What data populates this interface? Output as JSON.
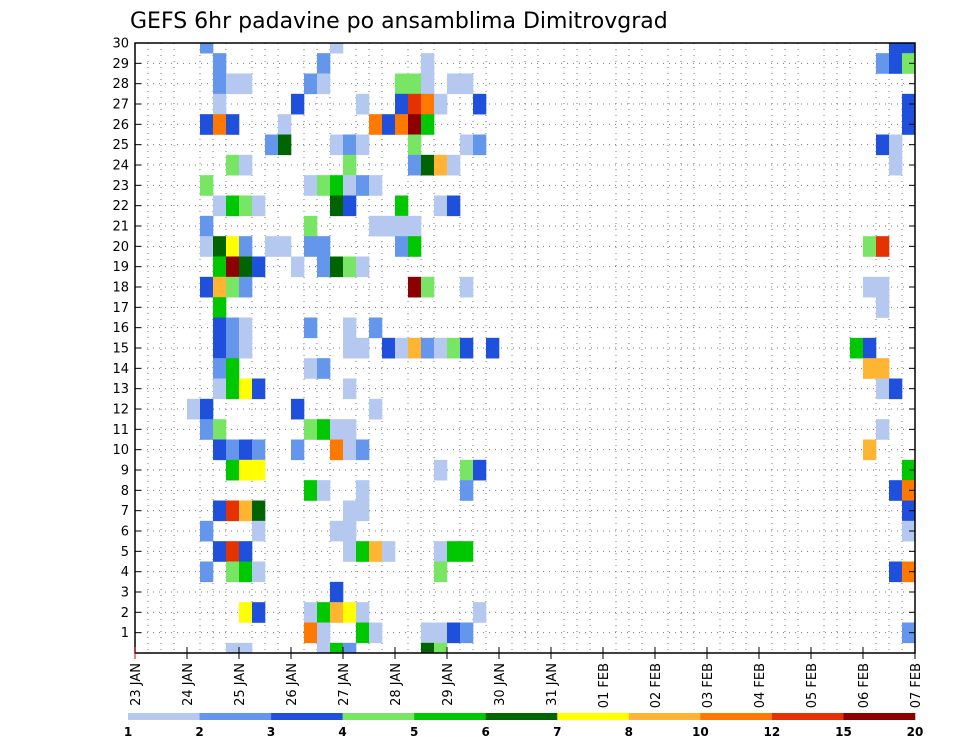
{
  "chart_data": {
    "type": "heatmap",
    "title": "GEFS 6hr padavine po ansamblima Dimitrovgrad",
    "xlabel": "",
    "ylabel": "",
    "x_tick_labels": [
      "23 JAN",
      "24 JAN",
      "25 JAN",
      "26 JAN",
      "27 JAN",
      "28 JAN",
      "29 JAN",
      "30 JAN",
      "31 JAN",
      "01 FEB",
      "02 FEB",
      "03 FEB",
      "04 FEB",
      "05 FEB",
      "06 FEB",
      "07 FEB"
    ],
    "x_range_steps": [
      0,
      60
    ],
    "step_hours": 6,
    "y_tick_labels": [
      "1",
      "2",
      "3",
      "4",
      "5",
      "6",
      "7",
      "8",
      "9",
      "10",
      "11",
      "12",
      "13",
      "14",
      "15",
      "16",
      "17",
      "18",
      "19",
      "20",
      "21",
      "22",
      "23",
      "24",
      "25",
      "26",
      "27",
      "28",
      "29",
      "30"
    ],
    "y_range": [
      0,
      30
    ],
    "grid": true,
    "colorbar": {
      "labels": [
        "1",
        "2",
        "3",
        "4",
        "5",
        "6",
        "7",
        "8",
        "10",
        "12",
        "15",
        "20"
      ],
      "colors": [
        "#b4c8f0",
        "#6496eb",
        "#1e50dc",
        "#78e664",
        "#00c800",
        "#006400",
        "#ffff00",
        "#ffb432",
        "#ff7800",
        "#e63200",
        "#8c0000"
      ]
    },
    "cell_encoding": "each cell = [time step (6 h), member row, colour class 1-11]",
    "cells": [
      [
        6,
        30,
        2
      ],
      [
        16,
        30,
        1
      ],
      [
        59,
        30,
        3
      ],
      [
        60,
        30,
        3
      ],
      [
        7,
        29,
        2
      ],
      [
        15,
        29,
        2
      ],
      [
        23,
        29,
        1
      ],
      [
        58,
        29,
        2
      ],
      [
        59,
        29,
        3
      ],
      [
        60,
        29,
        4
      ],
      [
        7,
        28,
        2
      ],
      [
        8,
        28,
        1
      ],
      [
        9,
        28,
        1
      ],
      [
        14,
        28,
        2
      ],
      [
        15,
        28,
        1
      ],
      [
        21,
        28,
        4
      ],
      [
        22,
        28,
        4
      ],
      [
        23,
        28,
        1
      ],
      [
        25,
        28,
        1
      ],
      [
        26,
        28,
        1
      ],
      [
        7,
        27,
        1
      ],
      [
        13,
        27,
        3
      ],
      [
        18,
        27,
        1
      ],
      [
        21,
        27,
        3
      ],
      [
        22,
        27,
        10
      ],
      [
        23,
        27,
        9
      ],
      [
        24,
        27,
        1
      ],
      [
        27,
        27,
        3
      ],
      [
        60,
        27,
        3
      ],
      [
        6,
        26,
        3
      ],
      [
        7,
        26,
        9
      ],
      [
        8,
        26,
        3
      ],
      [
        12,
        26,
        1
      ],
      [
        19,
        26,
        9
      ],
      [
        20,
        26,
        3
      ],
      [
        21,
        26,
        9
      ],
      [
        22,
        26,
        11
      ],
      [
        23,
        26,
        5
      ],
      [
        60,
        26,
        3
      ],
      [
        11,
        25,
        2
      ],
      [
        12,
        25,
        6
      ],
      [
        16,
        25,
        1
      ],
      [
        17,
        25,
        2
      ],
      [
        18,
        25,
        1
      ],
      [
        22,
        25,
        4
      ],
      [
        26,
        25,
        1
      ],
      [
        27,
        25,
        2
      ],
      [
        58,
        25,
        3
      ],
      [
        59,
        25,
        1
      ],
      [
        8,
        24,
        4
      ],
      [
        9,
        24,
        1
      ],
      [
        17,
        24,
        4
      ],
      [
        22,
        24,
        2
      ],
      [
        23,
        24,
        6
      ],
      [
        24,
        24,
        8
      ],
      [
        25,
        24,
        1
      ],
      [
        59,
        24,
        1
      ],
      [
        6,
        23,
        4
      ],
      [
        14,
        23,
        1
      ],
      [
        15,
        23,
        4
      ],
      [
        16,
        23,
        5
      ],
      [
        17,
        23,
        1
      ],
      [
        18,
        23,
        2
      ],
      [
        19,
        23,
        1
      ],
      [
        7,
        22,
        1
      ],
      [
        8,
        22,
        5
      ],
      [
        9,
        22,
        4
      ],
      [
        10,
        22,
        1
      ],
      [
        16,
        22,
        6
      ],
      [
        17,
        22,
        3
      ],
      [
        21,
        22,
        5
      ],
      [
        24,
        22,
        1
      ],
      [
        25,
        22,
        3
      ],
      [
        6,
        21,
        2
      ],
      [
        14,
        21,
        4
      ],
      [
        19,
        21,
        1
      ],
      [
        20,
        21,
        1
      ],
      [
        21,
        21,
        1
      ],
      [
        22,
        21,
        1
      ],
      [
        6,
        20,
        1
      ],
      [
        7,
        20,
        6
      ],
      [
        8,
        20,
        7
      ],
      [
        9,
        20,
        2
      ],
      [
        11,
        20,
        1
      ],
      [
        12,
        20,
        1
      ],
      [
        14,
        20,
        2
      ],
      [
        15,
        20,
        2
      ],
      [
        21,
        20,
        2
      ],
      [
        22,
        20,
        5
      ],
      [
        57,
        20,
        4
      ],
      [
        58,
        20,
        10
      ],
      [
        7,
        19,
        5
      ],
      [
        8,
        19,
        11
      ],
      [
        9,
        19,
        6
      ],
      [
        10,
        19,
        3
      ],
      [
        13,
        19,
        1
      ],
      [
        15,
        19,
        2
      ],
      [
        16,
        19,
        6
      ],
      [
        17,
        19,
        4
      ],
      [
        18,
        19,
        1
      ],
      [
        6,
        18,
        3
      ],
      [
        7,
        18,
        8
      ],
      [
        8,
        18,
        4
      ],
      [
        9,
        18,
        2
      ],
      [
        22,
        18,
        11
      ],
      [
        23,
        18,
        4
      ],
      [
        26,
        18,
        1
      ],
      [
        57,
        18,
        1
      ],
      [
        58,
        18,
        1
      ],
      [
        7,
        17,
        5
      ],
      [
        58,
        17,
        1
      ],
      [
        7,
        16,
        3
      ],
      [
        8,
        16,
        2
      ],
      [
        9,
        16,
        1
      ],
      [
        14,
        16,
        2
      ],
      [
        17,
        16,
        1
      ],
      [
        19,
        16,
        2
      ],
      [
        7,
        15,
        3
      ],
      [
        8,
        15,
        2
      ],
      [
        9,
        15,
        1
      ],
      [
        17,
        15,
        1
      ],
      [
        18,
        15,
        1
      ],
      [
        20,
        15,
        3
      ],
      [
        21,
        15,
        1
      ],
      [
        22,
        15,
        8
      ],
      [
        23,
        15,
        2
      ],
      [
        24,
        15,
        1
      ],
      [
        25,
        15,
        4
      ],
      [
        26,
        15,
        3
      ],
      [
        28,
        15,
        3
      ],
      [
        56,
        15,
        5
      ],
      [
        57,
        15,
        3
      ],
      [
        7,
        14,
        2
      ],
      [
        8,
        14,
        5
      ],
      [
        14,
        14,
        1
      ],
      [
        15,
        14,
        2
      ],
      [
        57,
        14,
        8
      ],
      [
        58,
        14,
        8
      ],
      [
        7,
        13,
        1
      ],
      [
        8,
        13,
        5
      ],
      [
        9,
        13,
        7
      ],
      [
        10,
        13,
        3
      ],
      [
        17,
        13,
        1
      ],
      [
        58,
        13,
        1
      ],
      [
        59,
        13,
        3
      ],
      [
        5,
        12,
        1
      ],
      [
        6,
        12,
        3
      ],
      [
        13,
        12,
        3
      ],
      [
        19,
        12,
        1
      ],
      [
        6,
        11,
        2
      ],
      [
        7,
        11,
        4
      ],
      [
        14,
        11,
        4
      ],
      [
        15,
        11,
        5
      ],
      [
        16,
        11,
        1
      ],
      [
        17,
        11,
        1
      ],
      [
        58,
        11,
        1
      ],
      [
        7,
        10,
        3
      ],
      [
        8,
        10,
        2
      ],
      [
        9,
        10,
        3
      ],
      [
        10,
        10,
        2
      ],
      [
        13,
        10,
        2
      ],
      [
        16,
        10,
        9
      ],
      [
        17,
        10,
        1
      ],
      [
        18,
        10,
        2
      ],
      [
        57,
        10,
        8
      ],
      [
        8,
        9,
        5
      ],
      [
        9,
        9,
        7
      ],
      [
        10,
        9,
        7
      ],
      [
        24,
        9,
        1
      ],
      [
        26,
        9,
        4
      ],
      [
        27,
        9,
        3
      ],
      [
        60,
        9,
        5
      ],
      [
        14,
        8,
        5
      ],
      [
        15,
        8,
        1
      ],
      [
        18,
        8,
        1
      ],
      [
        26,
        8,
        2
      ],
      [
        59,
        8,
        3
      ],
      [
        60,
        8,
        9
      ],
      [
        7,
        7,
        3
      ],
      [
        8,
        7,
        10
      ],
      [
        9,
        7,
        8
      ],
      [
        10,
        7,
        6
      ],
      [
        17,
        7,
        1
      ],
      [
        18,
        7,
        1
      ],
      [
        60,
        7,
        3
      ],
      [
        6,
        6,
        2
      ],
      [
        10,
        6,
        1
      ],
      [
        16,
        6,
        1
      ],
      [
        17,
        6,
        1
      ],
      [
        60,
        6,
        1
      ],
      [
        7,
        5,
        3
      ],
      [
        8,
        5,
        10
      ],
      [
        9,
        5,
        3
      ],
      [
        17,
        5,
        1
      ],
      [
        18,
        5,
        5
      ],
      [
        19,
        5,
        8
      ],
      [
        20,
        5,
        1
      ],
      [
        24,
        5,
        1
      ],
      [
        25,
        5,
        5
      ],
      [
        26,
        5,
        5
      ],
      [
        6,
        4,
        2
      ],
      [
        8,
        4,
        4
      ],
      [
        9,
        4,
        5
      ],
      [
        10,
        4,
        1
      ],
      [
        24,
        4,
        4
      ],
      [
        59,
        4,
        3
      ],
      [
        60,
        4,
        9
      ],
      [
        16,
        3,
        3
      ],
      [
        9,
        2,
        7
      ],
      [
        10,
        2,
        3
      ],
      [
        14,
        2,
        1
      ],
      [
        15,
        2,
        5
      ],
      [
        16,
        2,
        8
      ],
      [
        17,
        2,
        7
      ],
      [
        18,
        2,
        1
      ],
      [
        27,
        2,
        1
      ],
      [
        14,
        1,
        9
      ],
      [
        15,
        1,
        1
      ],
      [
        18,
        1,
        5
      ],
      [
        19,
        1,
        1
      ],
      [
        23,
        1,
        1
      ],
      [
        24,
        1,
        1
      ],
      [
        25,
        1,
        3
      ],
      [
        26,
        1,
        2
      ],
      [
        60,
        1,
        2
      ],
      [
        15,
        0,
        1
      ],
      [
        16,
        0,
        5
      ],
      [
        17,
        0,
        2
      ],
      [
        23,
        0,
        6
      ],
      [
        24,
        0,
        4
      ],
      [
        8,
        0,
        1
      ],
      [
        9,
        0,
        1
      ]
    ]
  }
}
